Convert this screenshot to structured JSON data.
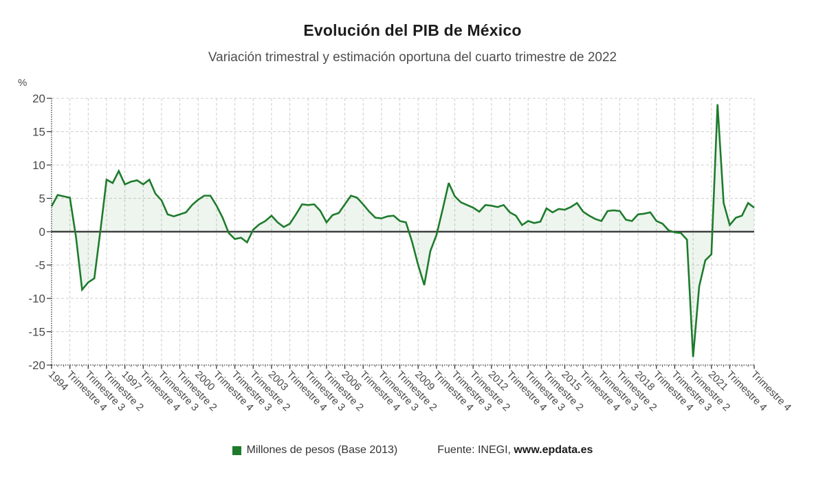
{
  "header": {},
  "footer": {
    "source_prefix": "Fuente: INEGI,",
    "source_site": "www.epdata.es"
  },
  "chart_data": {
    "type": "area",
    "title": "Evolución del PIB de México",
    "subtitle": "Variación trimestral y estimación oportuna del cuarto trimestre de 2022",
    "unit_label": "%",
    "ylim": [
      -20,
      20
    ],
    "y_ticks": [
      20,
      15,
      10,
      5,
      0,
      -5,
      -10,
      -15,
      -20
    ],
    "grid": true,
    "zero_line": true,
    "legend_position": "bottom",
    "x_range": {
      "start": "1994 Trimestre 1",
      "end": "2022 Trimestre 4",
      "step": "trimestre"
    },
    "x_ticks": [
      {
        "pos": 0,
        "label": "1994"
      },
      {
        "pos": 3,
        "label": "Trimestre 4"
      },
      {
        "pos": 6,
        "label": "Trimestre 3"
      },
      {
        "pos": 9,
        "label": "Trimestre 2"
      },
      {
        "pos": 12,
        "label": "1997"
      },
      {
        "pos": 15,
        "label": "Trimestre 4"
      },
      {
        "pos": 18,
        "label": "Trimestre 3"
      },
      {
        "pos": 21,
        "label": "Trimestre 2"
      },
      {
        "pos": 24,
        "label": "2000"
      },
      {
        "pos": 27,
        "label": "Trimestre 4"
      },
      {
        "pos": 30,
        "label": "Trimestre 3"
      },
      {
        "pos": 33,
        "label": "Trimestre 2"
      },
      {
        "pos": 36,
        "label": "2003"
      },
      {
        "pos": 39,
        "label": "Trimestre 4"
      },
      {
        "pos": 42,
        "label": "Trimestre 3"
      },
      {
        "pos": 45,
        "label": "Trimestre 2"
      },
      {
        "pos": 48,
        "label": "2006"
      },
      {
        "pos": 51,
        "label": "Trimestre 4"
      },
      {
        "pos": 54,
        "label": "Trimestre 3"
      },
      {
        "pos": 57,
        "label": "Trimestre 2"
      },
      {
        "pos": 60,
        "label": "2009"
      },
      {
        "pos": 63,
        "label": "Trimestre 4"
      },
      {
        "pos": 66,
        "label": "Trimestre 3"
      },
      {
        "pos": 69,
        "label": "Trimestre 2"
      },
      {
        "pos": 72,
        "label": "2012"
      },
      {
        "pos": 75,
        "label": "Trimestre 4"
      },
      {
        "pos": 78,
        "label": "Trimestre 3"
      },
      {
        "pos": 81,
        "label": "Trimestre 2"
      },
      {
        "pos": 84,
        "label": "2015"
      },
      {
        "pos": 87,
        "label": "Trimestre 4"
      },
      {
        "pos": 90,
        "label": "Trimestre 3"
      },
      {
        "pos": 93,
        "label": "Trimestre 2"
      },
      {
        "pos": 96,
        "label": "2018"
      },
      {
        "pos": 99,
        "label": "Trimestre 4"
      },
      {
        "pos": 102,
        "label": "Trimestre 3"
      },
      {
        "pos": 105,
        "label": "Trimestre 2"
      },
      {
        "pos": 108,
        "label": "2021"
      },
      {
        "pos": 111,
        "label": "Trimestre 4"
      },
      {
        "pos": 115,
        "label": "Trimestre 4"
      }
    ],
    "series": [
      {
        "name": "Millones de pesos (Base 2013)",
        "color": "#1e7b2c",
        "area_fill": "rgba(30,123,44,0.08)",
        "values": [
          3.8,
          5.5,
          5.3,
          5.1,
          -0.8,
          -8.7,
          -7.6,
          -7.0,
          0.2,
          7.8,
          7.3,
          9.1,
          7.1,
          7.5,
          7.7,
          7.1,
          7.8,
          5.7,
          4.7,
          2.6,
          2.3,
          2.6,
          2.9,
          4.0,
          4.8,
          5.4,
          5.4,
          3.9,
          2.1,
          -0.2,
          -1.1,
          -0.9,
          -1.6,
          0.3,
          1.1,
          1.6,
          2.4,
          1.4,
          0.7,
          1.2,
          2.6,
          4.1,
          4.0,
          4.1,
          3.1,
          1.4,
          2.5,
          2.8,
          4.1,
          5.4,
          5.1,
          4.1,
          3.0,
          2.1,
          2.0,
          2.3,
          2.4,
          1.6,
          1.4,
          -1.5,
          -5.0,
          -8.0,
          -2.9,
          -0.5,
          3.3,
          7.3,
          5.3,
          4.4,
          4.0,
          3.6,
          3.0,
          4.0,
          3.9,
          3.7,
          4.0,
          2.9,
          2.4,
          1.0,
          1.6,
          1.3,
          1.5,
          3.5,
          2.9,
          3.4,
          3.3,
          3.7,
          4.3,
          3.0,
          2.4,
          1.9,
          1.6,
          3.1,
          3.2,
          3.1,
          1.8,
          1.6,
          2.6,
          2.7,
          2.9,
          1.6,
          1.2,
          0.2,
          -0.1,
          -0.2,
          -1.2,
          -18.8,
          -8.2,
          -4.3,
          -3.4,
          19.1,
          4.3,
          1.0,
          2.1,
          2.4,
          4.3,
          3.6
        ]
      }
    ]
  },
  "colors": {
    "grid": "#cdcdcd",
    "axis": "#333333",
    "zero_line": "#3f3f3f",
    "tick_label": "#4a4a4a"
  }
}
